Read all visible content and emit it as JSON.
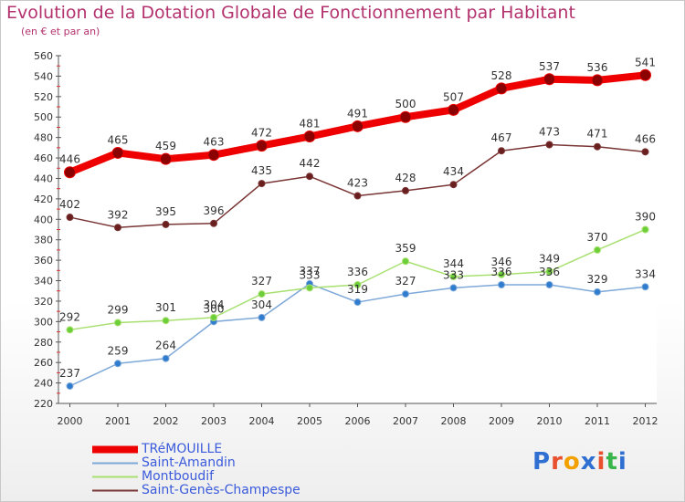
{
  "title": "Evolution de la Dotation Globale de Fonctionnement par Habitant",
  "subtitle": "(en € et par an)",
  "logo": {
    "text": "Proxiti",
    "colors": [
      "#2f6fd1",
      "#e8502e",
      "#f2a100",
      "#2f6fd1",
      "#e8502e",
      "#3ab54a",
      "#2f6fd1"
    ]
  },
  "chart_data": {
    "type": "line",
    "x": [
      "2000",
      "2001",
      "2002",
      "2003",
      "2004",
      "2005",
      "2006",
      "2007",
      "2008",
      "2009",
      "2010",
      "2011",
      "2012"
    ],
    "ylim": [
      220,
      560
    ],
    "yticks": [
      220,
      240,
      260,
      280,
      300,
      320,
      340,
      360,
      380,
      400,
      420,
      440,
      460,
      480,
      500,
      520,
      540,
      560
    ],
    "grid": false,
    "legend_position": "bottom-left",
    "series": [
      {
        "name": "TRéMOUILLE",
        "color": "#ee0000",
        "values": [
          446,
          465,
          459,
          463,
          472,
          481,
          491,
          500,
          507,
          528,
          537,
          536,
          541
        ]
      },
      {
        "name": "Saint-Amandin",
        "color": "#7ea8d8",
        "values": [
          237,
          259,
          264,
          300,
          304,
          337,
          319,
          327,
          333,
          336,
          336,
          329,
          334
        ]
      },
      {
        "name": "Montboudif",
        "color": "#a8e070",
        "values": [
          292,
          299,
          301,
          304,
          327,
          333,
          336,
          359,
          344,
          346,
          349,
          370,
          390
        ]
      },
      {
        "name": "Saint-Genès-Champespe",
        "color": "#7a3535",
        "values": [
          402,
          392,
          395,
          396,
          435,
          442,
          423,
          428,
          434,
          467,
          473,
          471,
          466
        ]
      }
    ]
  }
}
